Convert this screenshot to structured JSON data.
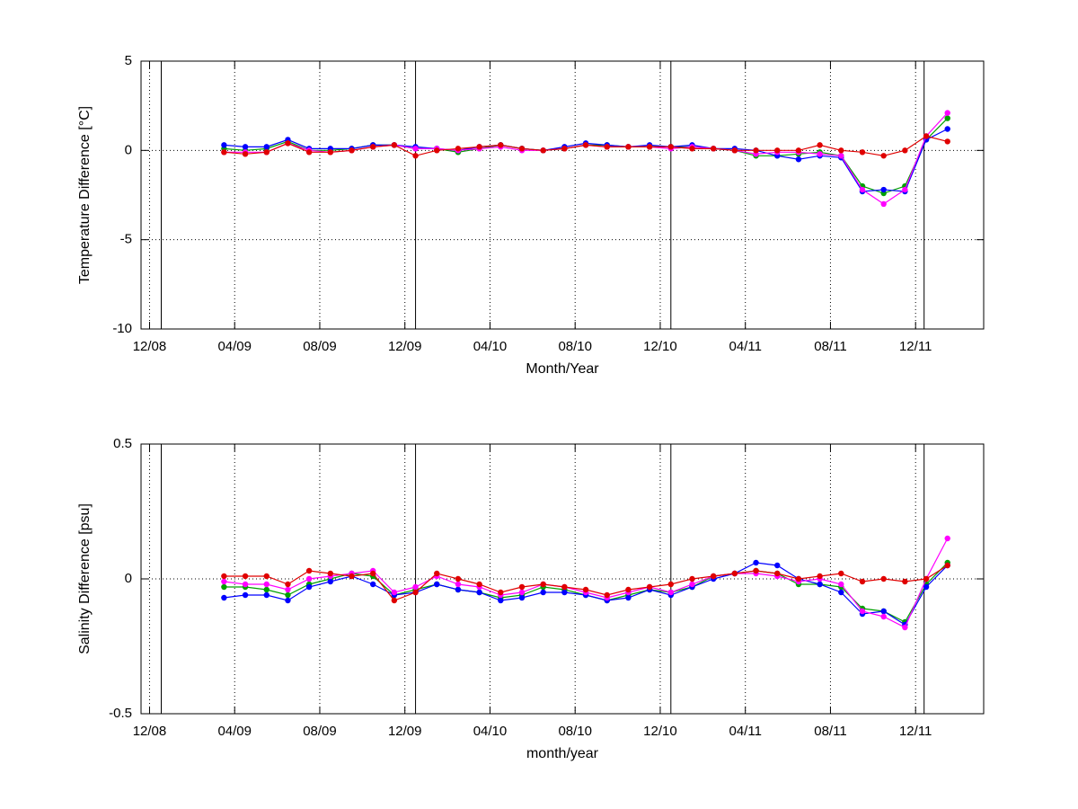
{
  "chart_data": [
    {
      "type": "line",
      "ylabel": "Temperature Difference [°C]",
      "xlabel": "Month/Year",
      "xlim": [
        -0.4,
        39.2
      ],
      "ylim": [
        -10,
        5
      ],
      "yticks": [
        -10,
        -5,
        0,
        5
      ],
      "grid": true,
      "xticks": [
        {
          "value": 0,
          "label": "12/08"
        },
        {
          "value": 4,
          "label": "04/09"
        },
        {
          "value": 8,
          "label": "08/09"
        },
        {
          "value": 12,
          "label": "12/09"
        },
        {
          "value": 16,
          "label": "04/10"
        },
        {
          "value": 20,
          "label": "08/10"
        },
        {
          "value": 24,
          "label": "12/10"
        },
        {
          "value": 28,
          "label": "04/11"
        },
        {
          "value": 32,
          "label": "08/11"
        },
        {
          "value": 36,
          "label": "12/11"
        }
      ],
      "vlines": [
        0.55,
        12.5,
        24.5,
        36.4
      ],
      "x": [
        3.5,
        4.5,
        5.5,
        6.5,
        7.5,
        8.5,
        9.5,
        10.5,
        11.5,
        12.5,
        13.5,
        14.5,
        15.5,
        16.5,
        17.5,
        18.5,
        19.5,
        20.5,
        21.5,
        22.5,
        23.5,
        24.5,
        25.5,
        26.5,
        27.5,
        28.5,
        29.5,
        30.5,
        31.5,
        32.5,
        33.5,
        34.5,
        35.5,
        36.5,
        37.5
      ],
      "series": [
        {
          "color": "#00a000",
          "values": [
            0.1,
            0.0,
            0.1,
            0.5,
            0.0,
            0.0,
            0.1,
            0.3,
            0.3,
            0.1,
            0.1,
            -0.1,
            0.1,
            0.3,
            0.1,
            0.0,
            0.1,
            0.3,
            0.3,
            0.2,
            0.2,
            0.2,
            0.2,
            0.1,
            0.0,
            -0.3,
            -0.3,
            -0.2,
            -0.1,
            -0.3,
            -2.0,
            -2.4,
            -2.0,
            0.6,
            1.8
          ]
        },
        {
          "color": "#0000ff",
          "values": [
            0.3,
            0.2,
            0.2,
            0.6,
            0.1,
            0.1,
            0.1,
            0.3,
            0.3,
            0.2,
            0.1,
            0.0,
            0.2,
            0.3,
            0.1,
            0.0,
            0.2,
            0.4,
            0.3,
            0.2,
            0.3,
            0.2,
            0.3,
            0.1,
            0.1,
            0.0,
            -0.3,
            -0.5,
            -0.3,
            -0.4,
            -2.3,
            -2.2,
            -2.3,
            0.6,
            1.2
          ]
        },
        {
          "color": "#ff00ff",
          "values": [
            -0.1,
            -0.1,
            -0.1,
            0.4,
            0.0,
            -0.1,
            0.0,
            0.2,
            0.3,
            0.1,
            0.1,
            0.0,
            0.1,
            0.2,
            0.0,
            0.0,
            0.1,
            0.3,
            0.2,
            0.2,
            0.2,
            0.1,
            0.2,
            0.1,
            0.0,
            -0.2,
            -0.1,
            -0.1,
            -0.2,
            -0.3,
            -2.2,
            -3.0,
            -2.2,
            0.8,
            2.1
          ]
        },
        {
          "color": "#e00000",
          "values": [
            -0.1,
            -0.2,
            -0.1,
            0.4,
            -0.1,
            -0.1,
            0.0,
            0.2,
            0.3,
            -0.3,
            0.0,
            0.1,
            0.2,
            0.3,
            0.1,
            0.0,
            0.1,
            0.3,
            0.2,
            0.2,
            0.2,
            0.2,
            0.1,
            0.1,
            0.0,
            0.0,
            0.0,
            0.0,
            0.3,
            0.0,
            -0.1,
            -0.3,
            0.0,
            0.8,
            0.5
          ]
        }
      ]
    },
    {
      "type": "line",
      "ylabel": "Salinity Difference [psu]",
      "xlabel": "month/year",
      "xlim": [
        -0.4,
        39.2
      ],
      "ylim": [
        -0.5,
        0.5
      ],
      "yticks": [
        -0.5,
        0,
        0.5
      ],
      "grid": true,
      "xticks": [
        {
          "value": 0,
          "label": "12/08"
        },
        {
          "value": 4,
          "label": "04/09"
        },
        {
          "value": 8,
          "label": "08/09"
        },
        {
          "value": 12,
          "label": "12/09"
        },
        {
          "value": 16,
          "label": "04/10"
        },
        {
          "value": 20,
          "label": "08/10"
        },
        {
          "value": 24,
          "label": "12/10"
        },
        {
          "value": 28,
          "label": "04/11"
        },
        {
          "value": 32,
          "label": "08/11"
        },
        {
          "value": 36,
          "label": "12/11"
        }
      ],
      "vlines": [
        0.55,
        12.5,
        24.5,
        36.4
      ],
      "x": [
        3.5,
        4.5,
        5.5,
        6.5,
        7.5,
        8.5,
        9.5,
        10.5,
        11.5,
        12.5,
        13.5,
        14.5,
        15.5,
        16.5,
        17.5,
        18.5,
        19.5,
        20.5,
        21.5,
        22.5,
        23.5,
        24.5,
        25.5,
        26.5,
        27.5,
        28.5,
        29.5,
        30.5,
        31.5,
        32.5,
        33.5,
        34.5,
        35.5,
        36.5,
        37.5
      ],
      "series": [
        {
          "color": "#00a000",
          "values": [
            -0.03,
            -0.03,
            -0.04,
            -0.06,
            -0.02,
            0.0,
            0.02,
            0.01,
            -0.06,
            -0.04,
            -0.02,
            -0.04,
            -0.05,
            -0.07,
            -0.06,
            -0.03,
            -0.04,
            -0.06,
            -0.08,
            -0.06,
            -0.04,
            -0.05,
            -0.03,
            0.01,
            0.02,
            0.03,
            0.02,
            -0.02,
            -0.02,
            -0.03,
            -0.11,
            -0.12,
            -0.16,
            -0.02,
            0.06
          ]
        },
        {
          "color": "#0000ff",
          "values": [
            -0.07,
            -0.06,
            -0.06,
            -0.08,
            -0.03,
            -0.01,
            0.01,
            -0.02,
            -0.06,
            -0.05,
            -0.02,
            -0.04,
            -0.05,
            -0.08,
            -0.07,
            -0.05,
            -0.05,
            -0.06,
            -0.08,
            -0.07,
            -0.04,
            -0.06,
            -0.03,
            0.0,
            0.02,
            0.06,
            0.05,
            0.0,
            -0.02,
            -0.05,
            -0.13,
            -0.12,
            -0.17,
            -0.03,
            0.05
          ]
        },
        {
          "color": "#ff00ff",
          "values": [
            -0.01,
            -0.02,
            -0.02,
            -0.04,
            0.0,
            0.01,
            0.02,
            0.03,
            -0.05,
            -0.03,
            0.01,
            -0.02,
            -0.03,
            -0.06,
            -0.05,
            -0.02,
            -0.03,
            -0.05,
            -0.07,
            -0.05,
            -0.03,
            -0.05,
            -0.02,
            0.01,
            0.02,
            0.02,
            0.01,
            -0.01,
            0.0,
            -0.02,
            -0.12,
            -0.14,
            -0.18,
            0.0,
            0.15
          ]
        },
        {
          "color": "#e00000",
          "values": [
            0.01,
            0.01,
            0.01,
            -0.02,
            0.03,
            0.02,
            0.01,
            0.02,
            -0.08,
            -0.05,
            0.02,
            0.0,
            -0.02,
            -0.05,
            -0.03,
            -0.02,
            -0.03,
            -0.04,
            -0.06,
            -0.04,
            -0.03,
            -0.02,
            0.0,
            0.01,
            0.02,
            0.03,
            0.02,
            0.0,
            0.01,
            0.02,
            -0.01,
            0.0,
            -0.01,
            0.0,
            0.05
          ]
        }
      ]
    }
  ]
}
